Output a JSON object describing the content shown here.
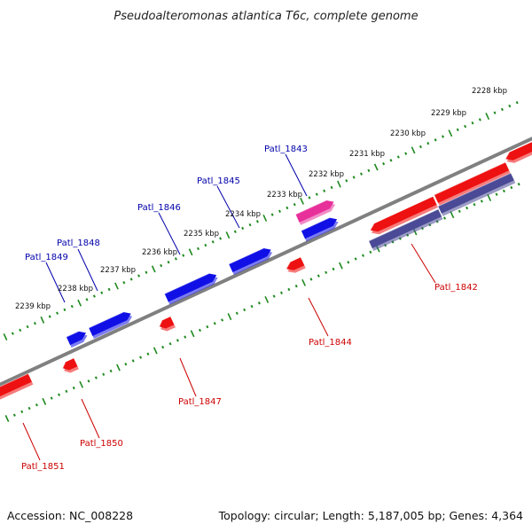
{
  "title": "Pseudoalteromonas atlantica T6c, complete genome",
  "footer": {
    "accession": "Accession: NC_008228",
    "summary": "Topology: circular; Length: 5,187,005 bp; Genes: 4,364"
  },
  "colors": {
    "backbone": "#808080",
    "ticks": "#1f8a1f",
    "forward_gene": "#1010e6",
    "reverse_gene": "#ee1111",
    "rna_gene": "#e8309a",
    "protein_feature": "#4a4a96",
    "forward_label": "#0000aa",
    "reverse_label": "#cc0000"
  },
  "kbp_labels": [
    "2228 kbp",
    "2229 kbp",
    "2230 kbp",
    "2231 kbp",
    "2232 kbp",
    "2233 kbp",
    "2234 kbp",
    "2235 kbp",
    "2236 kbp",
    "2237 kbp",
    "2238 kbp",
    "2239 kbp"
  ],
  "forward_labels": [
    "Patl_1843",
    "Patl_1845",
    "Patl_1846",
    "Patl_1848",
    "Patl_1849"
  ],
  "reverse_labels": [
    "Patl_1842",
    "Patl_1844",
    "Patl_1847",
    "Patl_1850",
    "Patl_1851"
  ]
}
